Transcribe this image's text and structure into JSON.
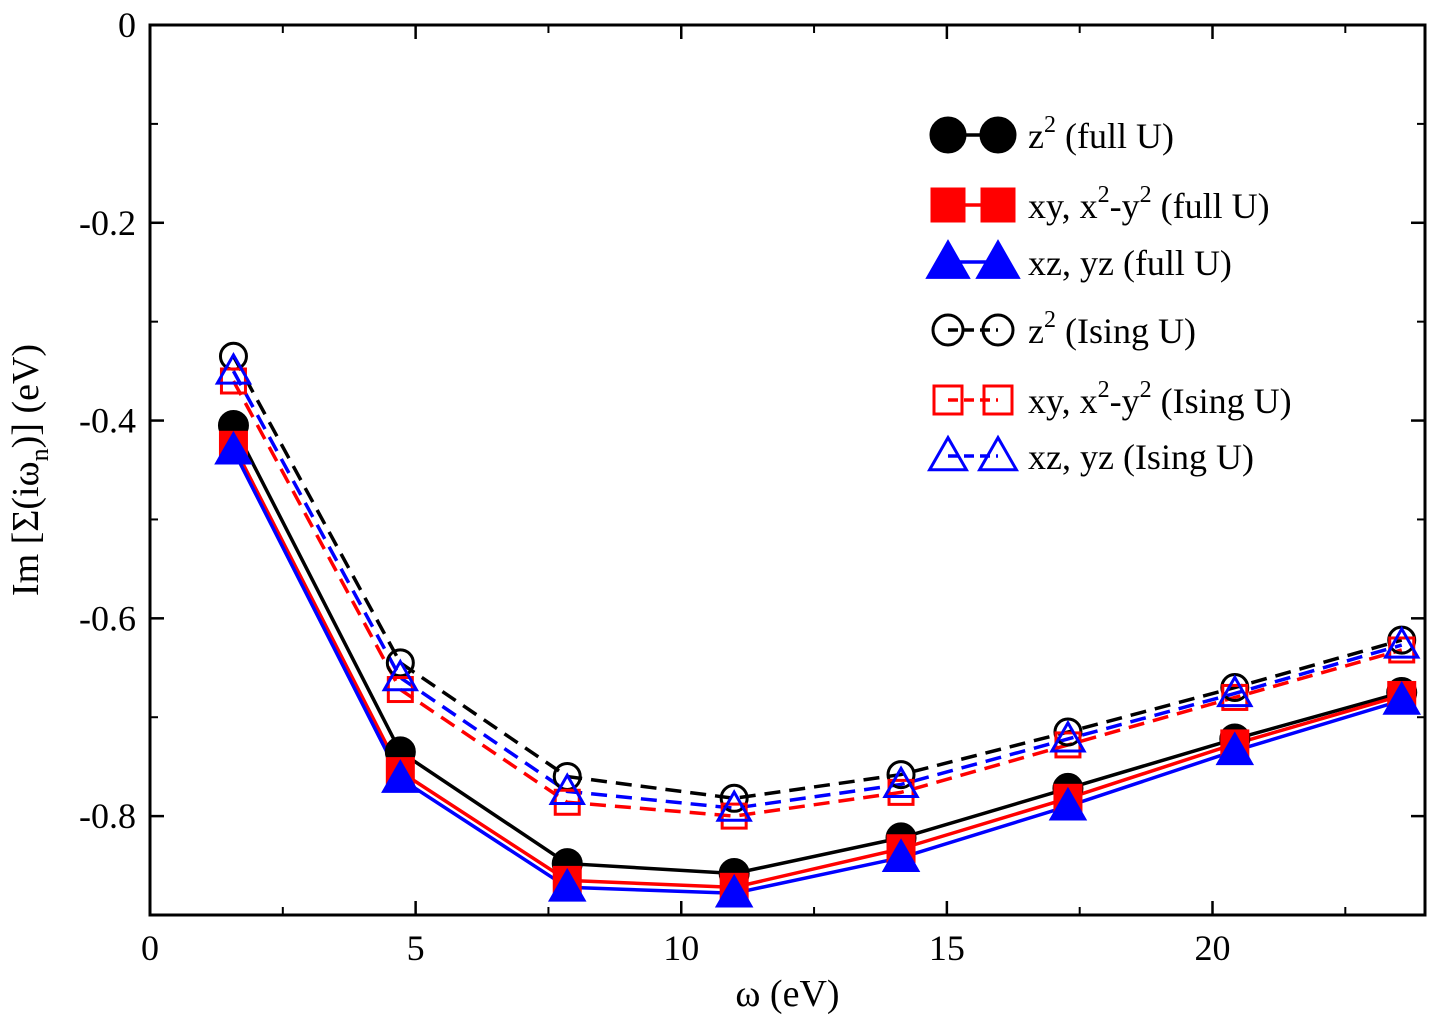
{
  "chart_data": {
    "type": "line",
    "title": "",
    "xlabel": "ω (eV)",
    "ylabel": "Im [Σ(iω_n)] (eV)",
    "ylabel_parts": {
      "pre": "Im [Σ(iω",
      "sub": "n",
      "post": ")] (eV)"
    },
    "xlim": [
      0,
      24
    ],
    "ylim": [
      -0.9,
      0.0
    ],
    "xticks": [
      0,
      5,
      10,
      15,
      20
    ],
    "xtick_labels": [
      "0",
      "5",
      "10",
      "15",
      "20"
    ],
    "yticks": [
      0,
      -0.2,
      -0.4,
      -0.6,
      -0.8
    ],
    "ytick_labels": [
      "0",
      "-0.2",
      "-0.4",
      "-0.6",
      "-0.8"
    ],
    "legend_position": "top-right",
    "x": [
      1.571,
      4.712,
      7.854,
      10.996,
      14.137,
      17.279,
      20.42,
      23.562
    ],
    "series": [
      {
        "name": "z² (full U)",
        "label_parts": [
          [
            "z",
            ""
          ],
          [
            "2",
            "sup"
          ],
          [
            " (full U)",
            ""
          ]
        ],
        "color": "#000000",
        "marker": "circle",
        "filled": true,
        "dashed": false,
        "values": [
          -0.405,
          -0.735,
          -0.848,
          -0.858,
          -0.822,
          -0.772,
          -0.722,
          -0.675
        ]
      },
      {
        "name": "xy, x²-y² (full U)",
        "label_parts": [
          [
            "xy, x",
            ""
          ],
          [
            "2",
            "sup"
          ],
          [
            "-y",
            ""
          ],
          [
            "2",
            "sup"
          ],
          [
            " (full U)",
            ""
          ]
        ],
        "color": "#ff0000",
        "marker": "square",
        "filled": true,
        "dashed": false,
        "values": [
          -0.425,
          -0.755,
          -0.865,
          -0.872,
          -0.833,
          -0.782,
          -0.727,
          -0.678
        ]
      },
      {
        "name": "xz, yz (full U)",
        "label_parts": [
          [
            "xz, yz (full U)",
            ""
          ]
        ],
        "color": "#0000ff",
        "marker": "triangle",
        "filled": true,
        "dashed": false,
        "values": [
          -0.43,
          -0.762,
          -0.872,
          -0.878,
          -0.842,
          -0.79,
          -0.734,
          -0.683
        ]
      },
      {
        "name": "z² (Ising U)",
        "label_parts": [
          [
            "z",
            ""
          ],
          [
            "2",
            "sup"
          ],
          [
            " (Ising U)",
            ""
          ]
        ],
        "color": "#000000",
        "marker": "circle",
        "filled": false,
        "dashed": true,
        "values": [
          -0.335,
          -0.645,
          -0.76,
          -0.782,
          -0.758,
          -0.715,
          -0.67,
          -0.622
        ]
      },
      {
        "name": "xy, x²-y² (Ising U)",
        "label_parts": [
          [
            "xy, x",
            ""
          ],
          [
            "2",
            "sup"
          ],
          [
            "-y",
            ""
          ],
          [
            "2",
            "sup"
          ],
          [
            " (Ising U)",
            ""
          ]
        ],
        "color": "#ff0000",
        "marker": "square",
        "filled": false,
        "dashed": true,
        "values": [
          -0.36,
          -0.672,
          -0.786,
          -0.8,
          -0.776,
          -0.728,
          -0.68,
          -0.632
        ]
      },
      {
        "name": "xz, yz (Ising U)",
        "label_parts": [
          [
            "xz, yz (Ising U)",
            ""
          ]
        ],
        "color": "#0000ff",
        "marker": "triangle",
        "filled": false,
        "dashed": true,
        "values": [
          -0.35,
          -0.66,
          -0.775,
          -0.792,
          -0.768,
          -0.722,
          -0.676,
          -0.627
        ]
      }
    ]
  }
}
